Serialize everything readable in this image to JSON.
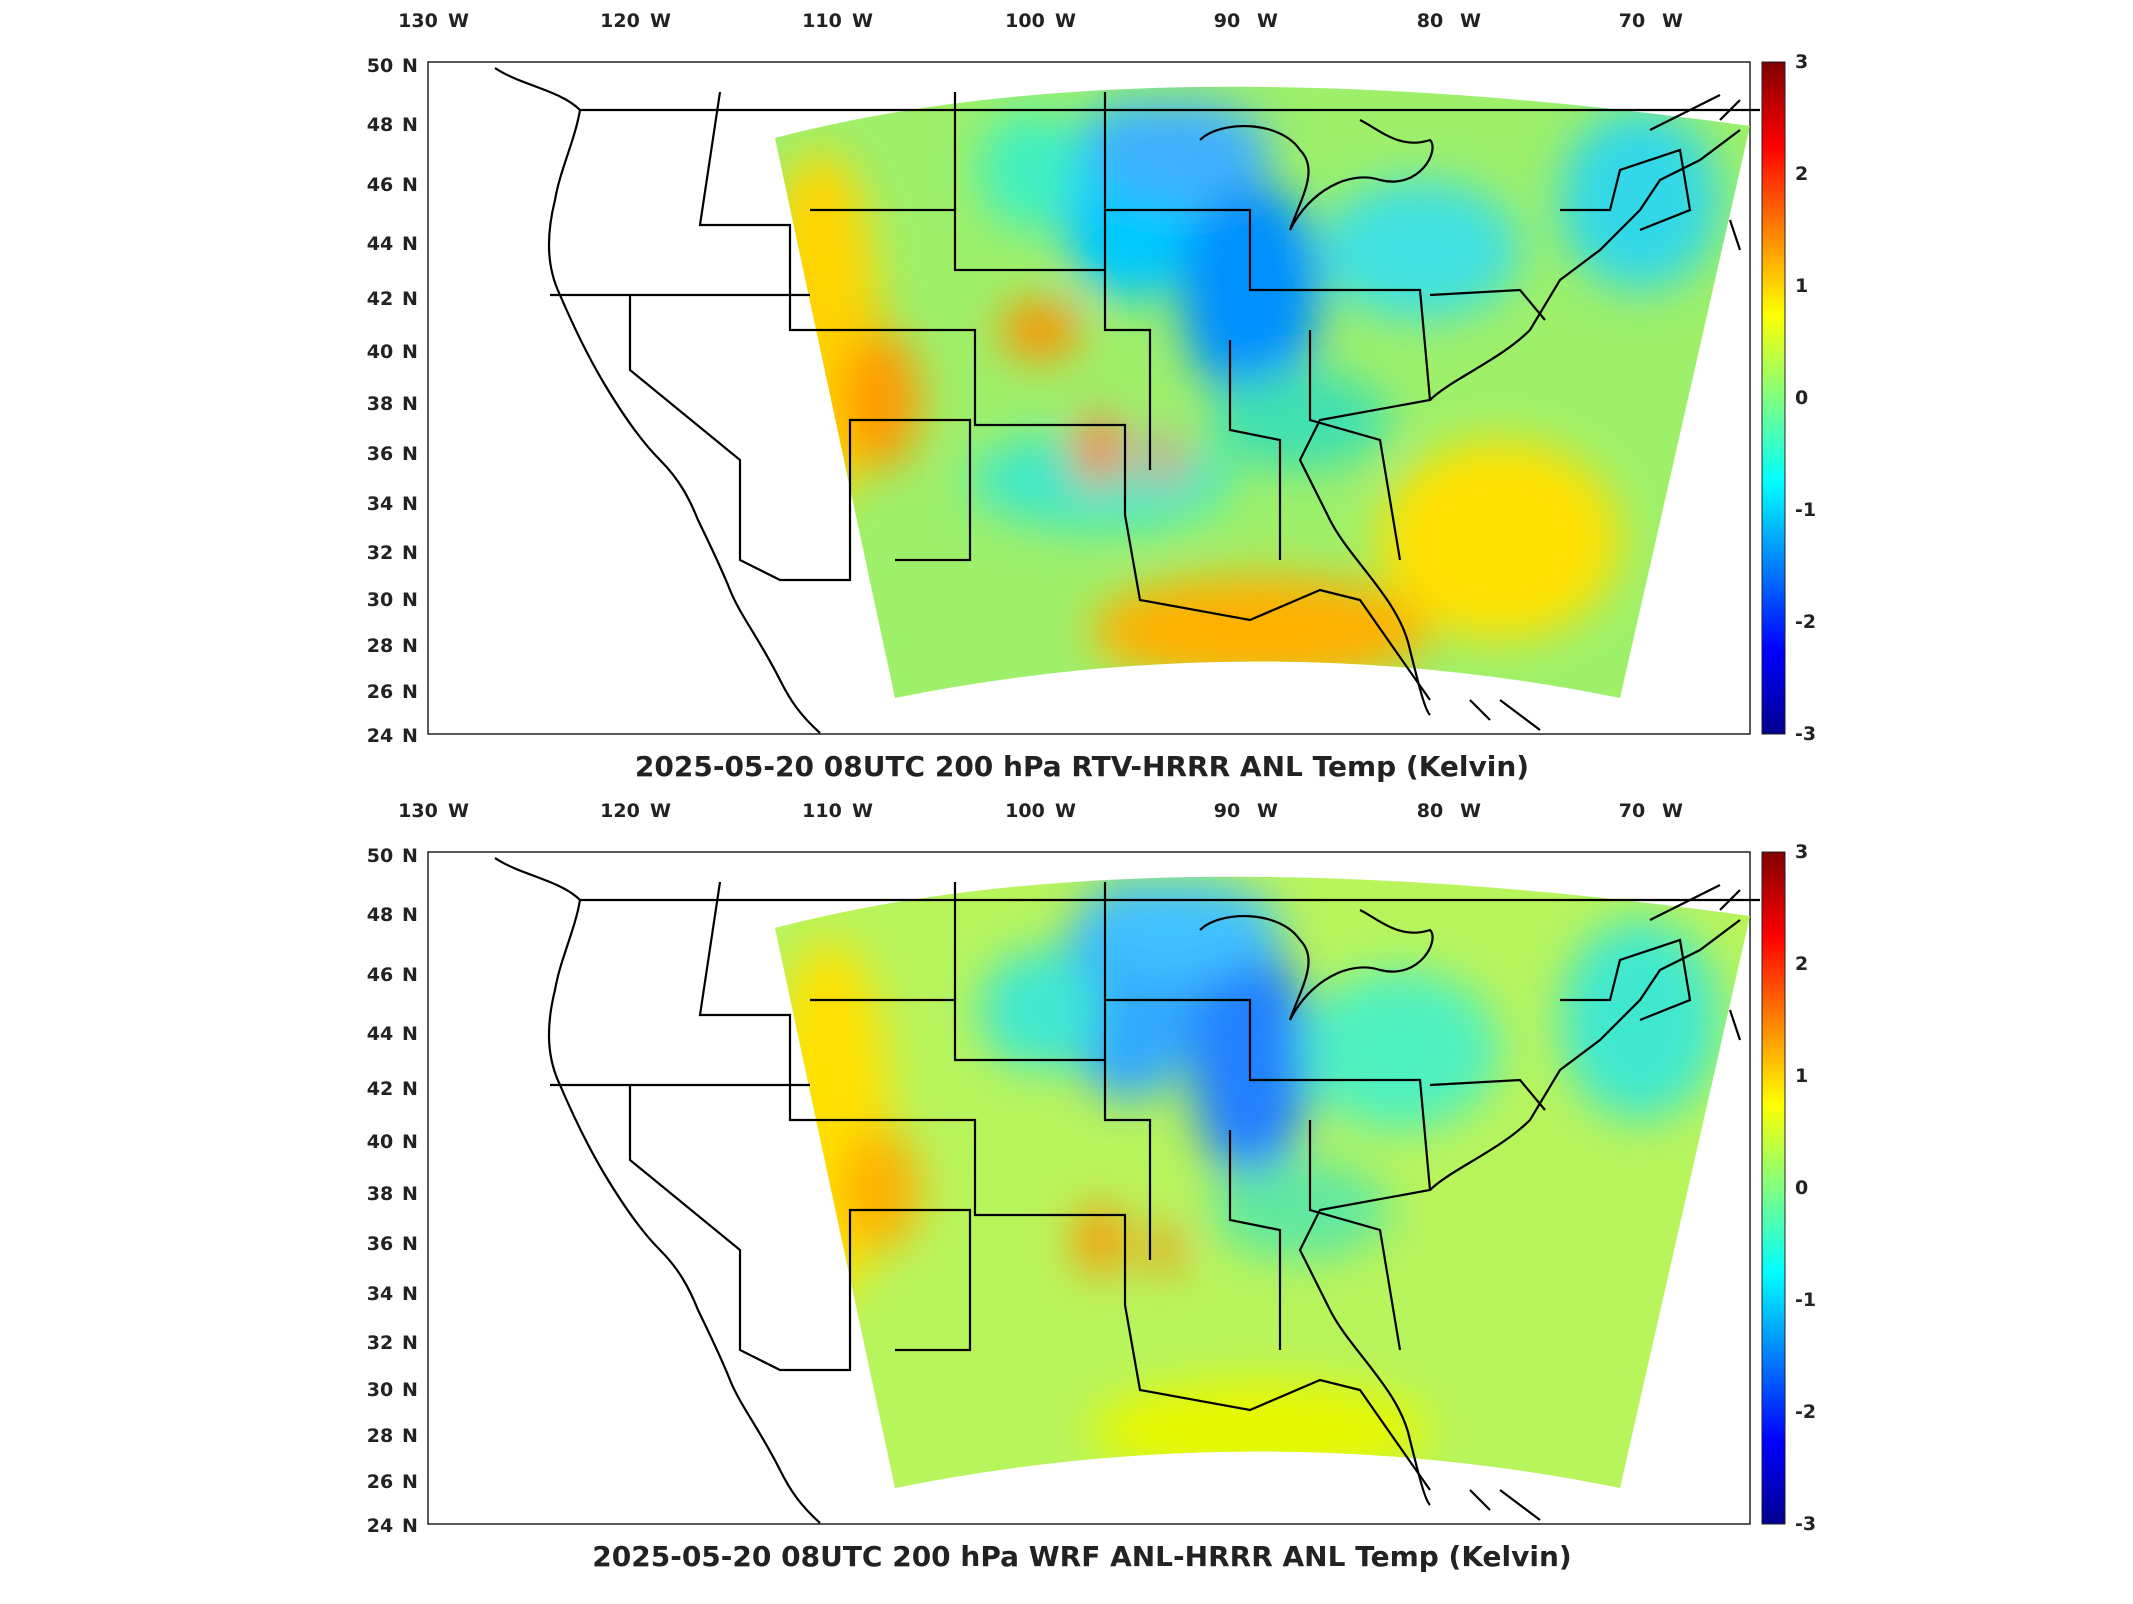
{
  "panels": [
    {
      "title": "2025-05-20 08UTC 200 hPa RTV-HRRR ANL Temp (Kelvin)",
      "variant": "rtv",
      "lon_ticks": [
        "130",
        "120",
        "110",
        "100",
        "90",
        "80",
        "70"
      ],
      "lat_ticks": [
        "50",
        "48",
        "46",
        "44",
        "42",
        "40",
        "38",
        "36",
        "34",
        "32",
        "30",
        "28",
        "26",
        "24"
      ],
      "lon_suffix": "W",
      "lat_suffix": "N",
      "colorbar": {
        "ticks": [
          "3",
          "2",
          "1",
          "0",
          "-1",
          "-2",
          "-3"
        ],
        "min": -3,
        "max": 3
      }
    },
    {
      "title": "2025-05-20 08UTC 200 hPa WRF ANL-HRRR ANL Temp (Kelvin)",
      "variant": "wrf",
      "lon_ticks": [
        "130",
        "120",
        "110",
        "100",
        "90",
        "80",
        "70"
      ],
      "lat_ticks": [
        "50",
        "48",
        "46",
        "44",
        "42",
        "40",
        "38",
        "36",
        "34",
        "32",
        "30",
        "28",
        "26",
        "24"
      ],
      "lon_suffix": "W",
      "lat_suffix": "N",
      "colorbar": {
        "ticks": [
          "3",
          "2",
          "1",
          "0",
          "-1",
          "-2",
          "-3"
        ],
        "min": -3,
        "max": 3
      }
    }
  ],
  "colormap": [
    "#00008f",
    "#0000ff",
    "#0080ff",
    "#00ffff",
    "#80ff80",
    "#ffff00",
    "#ff8000",
    "#ff0000",
    "#800000"
  ]
}
